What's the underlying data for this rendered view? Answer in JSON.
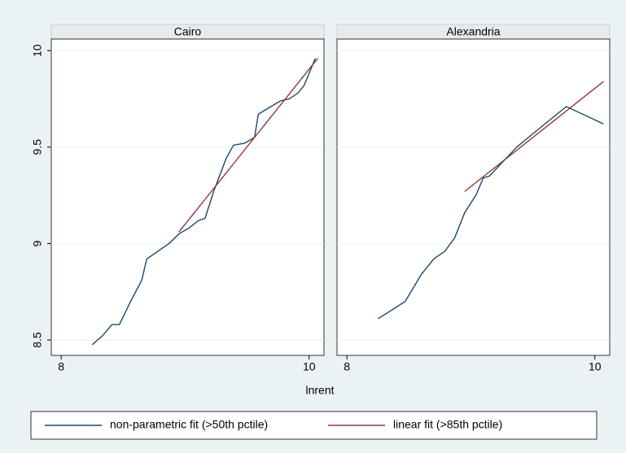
{
  "chart_data": {
    "type": "line",
    "xlabel": "lnrent",
    "xlim": [
      7.92,
      10.12
    ],
    "xticks": [
      8,
      10
    ],
    "ylim": [
      8.42,
      10.06
    ],
    "yticks": [
      8.5,
      9,
      9.5,
      10
    ],
    "grid": true,
    "legend": "bottom",
    "series": [
      {
        "name": "non-parametric fit (>50th pctile)",
        "color": "#1a476f"
      },
      {
        "name": "linear fit  (>85th pctile)",
        "color": "#90353b"
      }
    ],
    "panels": [
      {
        "title": "Cairo",
        "series": [
          {
            "x": [
              8.25,
              8.33,
              8.41,
              8.47,
              8.56,
              8.65,
              8.69,
              8.87,
              8.95,
              9.03,
              9.11,
              9.16,
              9.23,
              9.33,
              9.39,
              9.48,
              9.56,
              9.59,
              9.64,
              9.77,
              9.84,
              9.91,
              9.96,
              10.05
            ],
            "values": [
              8.475,
              8.52,
              8.58,
              8.58,
              8.7,
              8.81,
              8.92,
              9.0,
              9.05,
              9.08,
              9.12,
              9.13,
              9.27,
              9.44,
              9.51,
              9.52,
              9.55,
              9.67,
              9.69,
              9.74,
              9.75,
              9.78,
              9.82,
              9.96
            ]
          },
          {
            "x": [
              8.95,
              10.07
            ],
            "values": [
              9.06,
              9.96
            ]
          }
        ]
      },
      {
        "title": "Alexandria",
        "series": [
          {
            "x": [
              8.25,
              8.35,
              8.47,
              8.6,
              8.7,
              8.79,
              8.87,
              8.95,
              9.04,
              9.1,
              9.15,
              9.37,
              9.54,
              9.77,
              10.07
            ],
            "values": [
              8.61,
              8.65,
              8.7,
              8.84,
              8.92,
              8.96,
              9.03,
              9.16,
              9.25,
              9.34,
              9.35,
              9.5,
              9.59,
              9.71,
              9.62
            ]
          },
          {
            "x": [
              8.95,
              10.07
            ],
            "values": [
              9.27,
              9.84
            ]
          }
        ]
      }
    ]
  }
}
